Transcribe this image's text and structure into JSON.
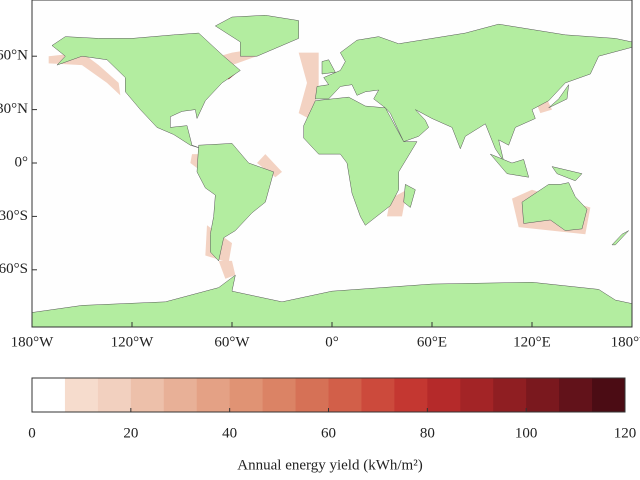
{
  "map": {
    "lon_ticks": [
      {
        "value": -180,
        "label": "180°W"
      },
      {
        "value": -120,
        "label": "120°W"
      },
      {
        "value": -60,
        "label": "60°W"
      },
      {
        "value": 0,
        "label": "0°"
      },
      {
        "value": 60,
        "label": "60°E"
      },
      {
        "value": 120,
        "label": "120°E"
      },
      {
        "value": 180,
        "label": "180°W"
      }
    ],
    "lat_ticks": [
      {
        "value": 60,
        "label": "60°N"
      },
      {
        "value": 30,
        "label": "30°N"
      },
      {
        "value": 0,
        "label": "0°"
      },
      {
        "value": -30,
        "label": "30°S"
      },
      {
        "value": -60,
        "label": "60°S"
      }
    ],
    "colorbar": {
      "label": "Annual energy yield (kWh/m²)",
      "lim": [
        0,
        120
      ],
      "ticks": [
        0,
        20,
        40,
        60,
        80,
        100,
        120
      ],
      "colors": [
        "#ffffff",
        "#f6dccd",
        "#f2d0bf",
        "#edc0aa",
        "#e8b097",
        "#e4a185",
        "#e09374",
        "#db8365",
        "#d67156",
        "#d25f49",
        "#cc4a3c",
        "#c43731",
        "#b52a2a",
        "#a32426",
        "#8f1e22",
        "#7a181e",
        "#62121a",
        "#4b0c14"
      ]
    }
  }
}
